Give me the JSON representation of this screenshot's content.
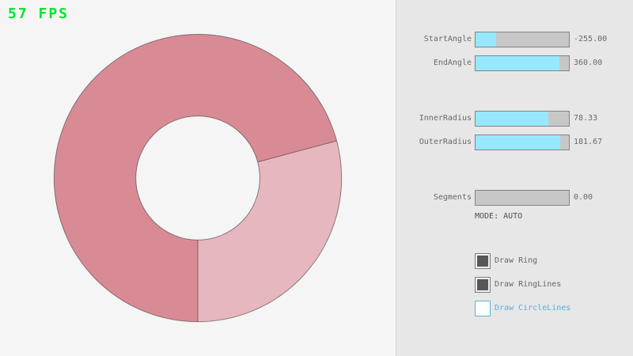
{
  "app": {
    "fps_text": "57 FPS"
  },
  "colors": {
    "background": "#f5f5f5",
    "panel_background": "#e7e7e7",
    "slider_fill_cyan": "#97e8ff",
    "slider_track_gray": "#c7c7c7",
    "label_gray": "#686868",
    "focus_blue": "#5bb2d9",
    "fps_green": "#00e430",
    "ring_light_pink": "#e6b7be",
    "ring_dark_pink": "#d98b95"
  },
  "ring": {
    "start_angle": -255,
    "end_angle": 360,
    "inner_radius": 78.33,
    "outer_radius": 181.67,
    "color_single_pass": "#e6b7be",
    "color_double_pass": "#d98b95",
    "outline_color": "rgba(0,0,0,0.42)"
  },
  "panel": {
    "sliders": [
      {
        "label": "StartAngle",
        "value_text": "-255.00",
        "fill_pct": 21.7
      },
      {
        "label": "EndAngle",
        "value_text": "360.00",
        "fill_pct": 90.0
      },
      {
        "label": "InnerRadius",
        "value_text": "78.33",
        "fill_pct": 78.3
      },
      {
        "label": "OuterRadius",
        "value_text": "181.67",
        "fill_pct": 90.8
      },
      {
        "label": "Segments",
        "value_text": "0.00",
        "fill_pct": 0
      }
    ],
    "mode_text": "MODE: AUTO",
    "checkboxes": [
      {
        "label": "Draw Ring",
        "checked": true
      },
      {
        "label": "Draw RingLines",
        "checked": true
      },
      {
        "label": "Draw CircleLines",
        "checked": false
      }
    ]
  }
}
